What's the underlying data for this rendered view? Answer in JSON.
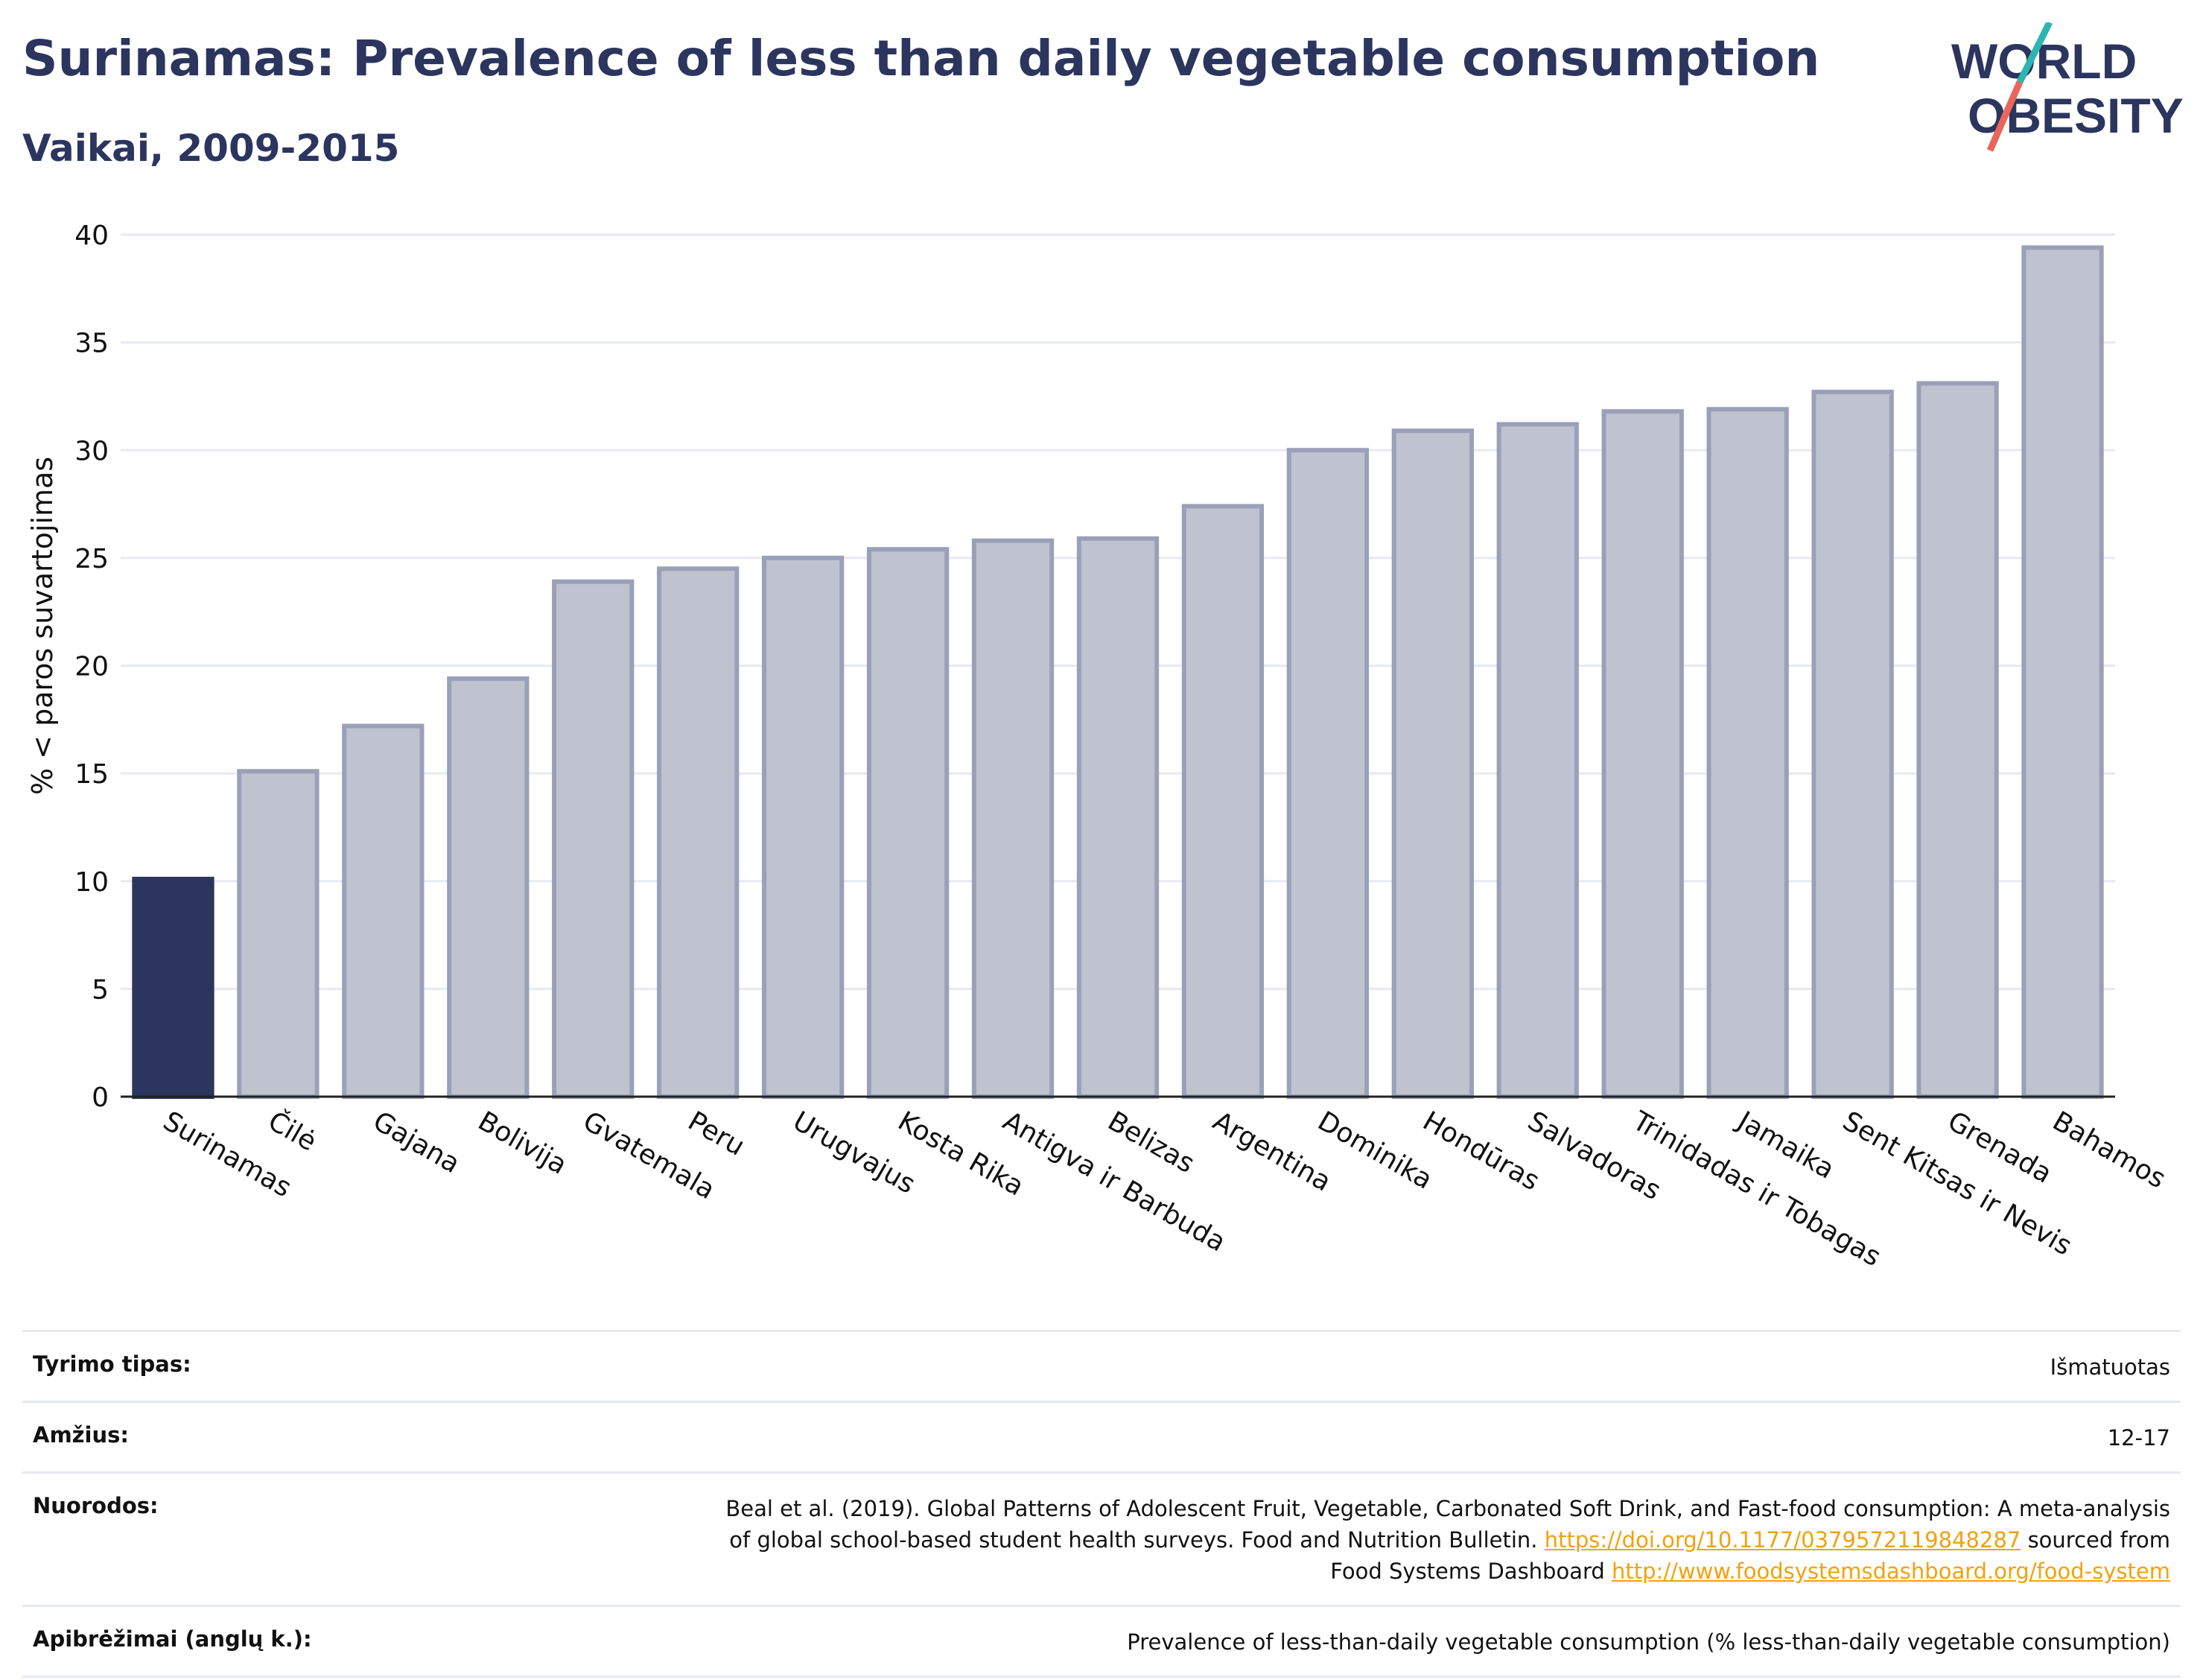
{
  "header": {
    "title": "Surinamas: Prevalence of less than daily vegetable consumption",
    "subtitle": "Vaikai, 2009-2015"
  },
  "logo": {
    "line1": "WORLD",
    "line2": "OBESITY"
  },
  "colors": {
    "highlight": "#2b355e",
    "bar_fill": "#bfc2cf",
    "bar_edge": "#9aa0b8",
    "grid": "#e8eaf0",
    "logo_slash_teal": "#2fb5b0",
    "logo_slash_red": "#e8665a"
  },
  "chart_data": {
    "type": "bar",
    "ylabel": "% < paros suvartojimas",
    "ylim": [
      0,
      40
    ],
    "yticks": [
      0,
      5,
      10,
      15,
      20,
      25,
      30,
      35,
      40
    ],
    "grid": true,
    "highlight_index": 0,
    "categories": [
      "Surinamas",
      "Čilė",
      "Gajana",
      "Bolivija",
      "Gvatemala",
      "Peru",
      "Urugvajus",
      "Kosta Rika",
      "Antigva ir Barbuda",
      "Belizas",
      "Argentina",
      "Dominika",
      "Hondūras",
      "Salvadoras",
      "Trinidadas ir Tobagas",
      "Jamaika",
      "Sent Kitsas ir Nevis",
      "Grenada",
      "Bahamos"
    ],
    "values": [
      10.1,
      15.1,
      17.2,
      19.4,
      23.9,
      24.5,
      25.0,
      25.4,
      25.8,
      25.9,
      27.4,
      30.0,
      30.9,
      31.2,
      31.8,
      31.9,
      32.7,
      33.1,
      39.4
    ]
  },
  "meta": {
    "rows": [
      {
        "label": "Tyrimo tipas:",
        "value": "Išmatuotas"
      },
      {
        "label": "Amžius:",
        "value": "12-17"
      },
      {
        "label": "Nuorodos:",
        "value_line1": "Beal et al. (2019). Global Patterns of Adolescent Fruit, Vegetable, Carbonated Soft Drink, and Fast-food consumption: A meta-analysis",
        "value_line2_pre": "of global school-based student health surveys. Food and Nutrition Bulletin. ",
        "link1": "https://doi.org/10.1177/0379572119848287",
        "value_line2_post": " sourced from",
        "value_line3_pre": "Food Systems Dashboard ",
        "link2": "http://www.foodsystemsdashboard.org/food-system"
      },
      {
        "label": "Apibrėžimai (anglų k.):",
        "value": "Prevalence of less-than-daily vegetable consumption (% less-than-daily vegetable consumption)"
      }
    ]
  }
}
